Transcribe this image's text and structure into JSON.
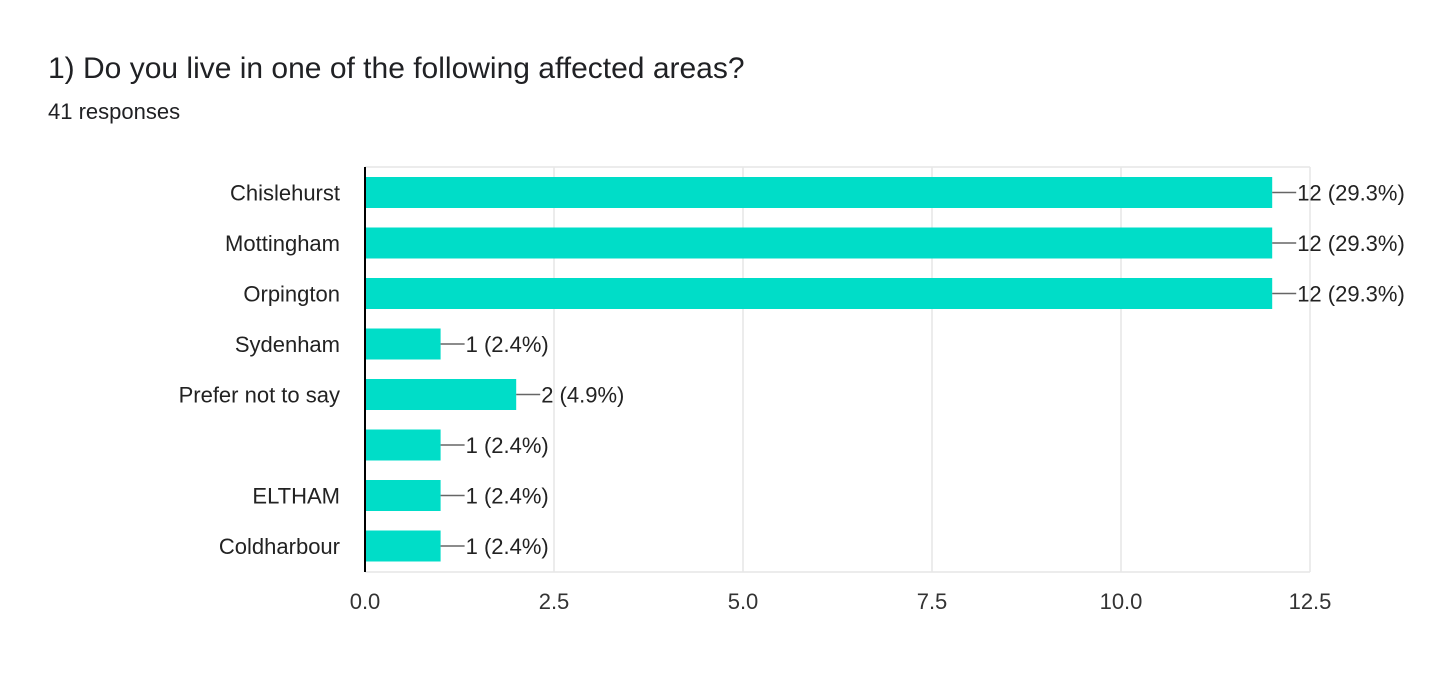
{
  "question": {
    "title": "1) Do you live in one of the following affected areas?",
    "responses": "41 responses"
  },
  "colors": {
    "bar": "#00DDC8",
    "axis": "#000000",
    "grid": "#E6E6E6",
    "leader": "#666666"
  },
  "chart_data": {
    "type": "bar",
    "orientation": "horizontal",
    "title": "1) Do you live in one of the following affected areas?",
    "subtitle": "41 responses",
    "xlabel": "",
    "ylabel": "",
    "categories": [
      "Chislehurst",
      "Mottingham",
      "Orpington",
      "Sydenham",
      "Prefer not to say",
      "",
      "ELTHAM",
      "Coldharbour"
    ],
    "values": [
      12,
      12,
      12,
      1,
      2,
      1,
      1,
      1
    ],
    "labels": [
      "12 (29.3%)",
      "12 (29.3%)",
      "12 (29.3%)",
      "1 (2.4%)",
      "2 (4.9%)",
      "1 (2.4%)",
      "1 (2.4%)",
      "1 (2.4%)"
    ],
    "xlim": [
      0,
      12.5
    ],
    "xticks": [
      "0.0",
      "2.5",
      "5.0",
      "7.5",
      "10.0",
      "12.5"
    ],
    "grid": true,
    "legend": "none"
  }
}
